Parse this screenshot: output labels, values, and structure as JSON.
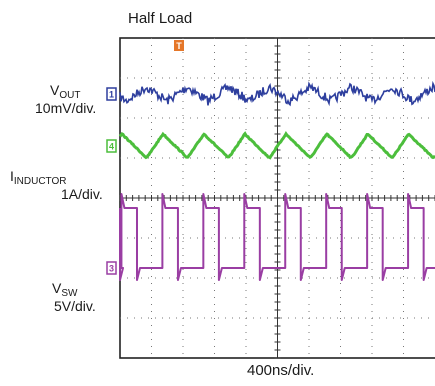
{
  "chart_data": {
    "type": "line",
    "title": "Half Load",
    "time_scale_label": "400ns/div.",
    "grid": true,
    "grid_divisions": {
      "x": 10,
      "y": 8
    },
    "trigger_marker": "T",
    "channels": [
      {
        "id": "vout",
        "label_main": "V",
        "label_sub": "OUT",
        "scale_label": "10mV/div.",
        "marker": "1",
        "color": "#2e3f9e",
        "ground_div": 1.4,
        "waveform": "noisy ripple",
        "ripple_divs": 0.5,
        "period_div": 1.3
      },
      {
        "id": "inductor",
        "label_main": "I",
        "label_sub": "INDUCTOR",
        "scale_label": "1A/div.",
        "marker": "4",
        "color": "#4cbe3c",
        "ground_div": 2.7,
        "waveform": "triangle",
        "peak_to_peak_divs": 0.6,
        "period_div": 1.3
      },
      {
        "id": "vsw",
        "label_main": "V",
        "label_sub": "SW",
        "scale_label": "5V/div.",
        "marker": "3",
        "color": "#9a3ea3",
        "ground_div": 5.75,
        "waveform": "square",
        "amplitude_divs": 1.5,
        "period_div": 1.3,
        "duty": 0.38
      }
    ]
  }
}
